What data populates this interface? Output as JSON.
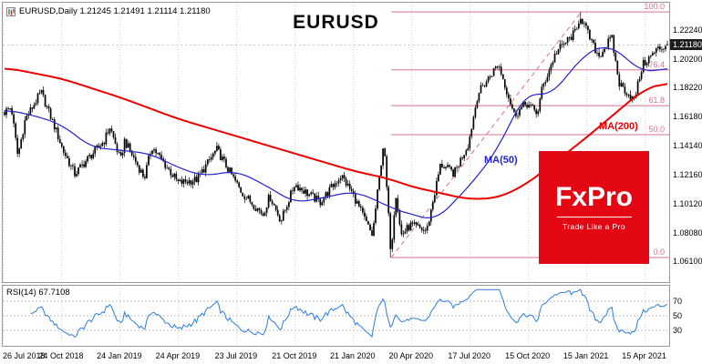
{
  "header": {
    "ohlc_line": "EURUSD,Daily  1.21245 1.21491 1.21114 1.21180"
  },
  "chart_title": "EURUSD",
  "overlays": {
    "ma200_label": "MA(200)",
    "ma50_label": "MA(50)"
  },
  "logo": {
    "brand": "FxPro",
    "tagline": "Trade Like a Pro"
  },
  "colors": {
    "candle": "#000000",
    "ma200": "#ee0000",
    "ma50": "#2323cc",
    "fib": "#db7093",
    "rsi_line": "#2f7ed8",
    "rsi_level": "#c0c0c0",
    "grid": "#d4d4d4",
    "bid_line": "#b8b8b8",
    "logo_bg": "#e30613",
    "price_tag_bg": "#1c1c1c"
  },
  "price_axis": {
    "labels": [
      "1.22240",
      "1.20200",
      "1.18220",
      "1.16180",
      "1.14140",
      "1.12160",
      "1.10120",
      "1.08080",
      "1.06100"
    ],
    "current": "1.21180"
  },
  "rsi_panel": {
    "label": "RSI(14) 67.7108",
    "axis_labels": [
      "70",
      "50",
      "30"
    ]
  },
  "date_axis": {
    "labels": [
      "26 Jul 2018",
      "24 Oct 2018",
      "24 Jan 2019",
      "24 Apr 2019",
      "23 Jul 2019",
      "21 Oct 2019",
      "21 Jan 2020",
      "20 Apr 2020",
      "17 Jul 2020",
      "15 Oct 2020",
      "15 Jan 2021",
      "15 Apr 2021"
    ]
  },
  "chart_data": {
    "type": "candlestick",
    "title": "EURUSD",
    "timeframe": "Daily",
    "bars": 360,
    "ohlc_current": {
      "open": 1.21245,
      "high": 1.21491,
      "low": 1.21114,
      "close": 1.2118
    },
    "current_price": 1.2118,
    "y_range": [
      1.0465,
      1.2413
    ],
    "x_tick_step": 0.0875,
    "close_path": [
      [
        0.0,
        1.165
      ],
      [
        0.01,
        1.1688
      ],
      [
        0.02,
        1.1342
      ],
      [
        0.031,
        1.1598
      ],
      [
        0.055,
        1.179
      ],
      [
        0.077,
        1.153
      ],
      [
        0.0875,
        1.1392
      ],
      [
        0.106,
        1.1218
      ],
      [
        0.125,
        1.1322
      ],
      [
        0.15,
        1.1448
      ],
      [
        0.159,
        1.1548
      ],
      [
        0.175,
        1.131
      ],
      [
        0.181,
        1.1452
      ],
      [
        0.211,
        1.1192
      ],
      [
        0.222,
        1.1412
      ],
      [
        0.2625,
        1.1155
      ],
      [
        0.29,
        1.118
      ],
      [
        0.32,
        1.139
      ],
      [
        0.35,
        1.1152
      ],
      [
        0.358,
        1.1088
      ],
      [
        0.39,
        1.0938
      ],
      [
        0.4,
        1.1068
      ],
      [
        0.417,
        1.0892
      ],
      [
        0.4375,
        1.1148
      ],
      [
        0.476,
        1.1022
      ],
      [
        0.508,
        1.121
      ],
      [
        0.525,
        1.1082
      ],
      [
        0.555,
        1.0788
      ],
      [
        0.572,
        1.1448
      ],
      [
        0.583,
        1.0662
      ],
      [
        0.59,
        1.1098
      ],
      [
        0.598,
        1.0792
      ],
      [
        0.6125,
        1.0862
      ],
      [
        0.637,
        1.0822
      ],
      [
        0.658,
        1.1288
      ],
      [
        0.678,
        1.1222
      ],
      [
        0.7,
        1.1432
      ],
      [
        0.714,
        1.1778
      ],
      [
        0.745,
        1.1988
      ],
      [
        0.769,
        1.1632
      ],
      [
        0.7875,
        1.1712
      ],
      [
        0.804,
        1.1642
      ],
      [
        0.811,
        1.1815
      ],
      [
        0.832,
        1.2068
      ],
      [
        0.863,
        1.2215
      ],
      [
        0.868,
        1.233
      ],
      [
        0.888,
        1.2112
      ],
      [
        0.897,
        1.2042
      ],
      [
        0.916,
        1.2172
      ],
      [
        0.927,
        1.1852
      ],
      [
        0.95,
        1.1732
      ],
      [
        0.9625,
        1.1978
      ],
      [
        0.985,
        1.2088
      ],
      [
        1.0,
        1.2118
      ]
    ],
    "ma50_path": [
      [
        0,
        1.167
      ],
      [
        0.05,
        1.162
      ],
      [
        0.0875,
        1.156
      ],
      [
        0.13,
        1.1405
      ],
      [
        0.175,
        1.1385
      ],
      [
        0.22,
        1.136
      ],
      [
        0.2625,
        1.1262
      ],
      [
        0.3,
        1.1205
      ],
      [
        0.35,
        1.124
      ],
      [
        0.39,
        1.115
      ],
      [
        0.4375,
        1.1018
      ],
      [
        0.48,
        1.1052
      ],
      [
        0.525,
        1.1098
      ],
      [
        0.56,
        1.104
      ],
      [
        0.583,
        1.098
      ],
      [
        0.6125,
        1.094
      ],
      [
        0.65,
        1.0892
      ],
      [
        0.7,
        1.1128
      ],
      [
        0.74,
        1.136
      ],
      [
        0.7875,
        1.1798
      ],
      [
        0.82,
        1.1752
      ],
      [
        0.86,
        1.1962
      ],
      [
        0.875,
        1.206
      ],
      [
        0.91,
        1.2122
      ],
      [
        0.935,
        1.2042
      ],
      [
        0.9625,
        1.1922
      ],
      [
        1.0,
        1.1962
      ]
    ],
    "ma200_path": [
      [
        0,
        1.1962
      ],
      [
        0.0875,
        1.1882
      ],
      [
        0.175,
        1.1752
      ],
      [
        0.2625,
        1.1602
      ],
      [
        0.35,
        1.1482
      ],
      [
        0.4375,
        1.1362
      ],
      [
        0.525,
        1.1242
      ],
      [
        0.583,
        1.1182
      ],
      [
        0.6125,
        1.1132
      ],
      [
        0.7,
        1.1042
      ],
      [
        0.745,
        1.1052
      ],
      [
        0.7875,
        1.1148
      ],
      [
        0.875,
        1.1462
      ],
      [
        0.9625,
        1.1802
      ],
      [
        1.0,
        1.1862
      ]
    ],
    "fibonacci": {
      "low": {
        "t": 0.583,
        "price": 1.0636
      },
      "high": {
        "t": 0.868,
        "price": 1.2349
      },
      "levels": [
        {
          "label": "0.0",
          "price": 1.0636
        },
        {
          "label": "50.0",
          "price": 1.1493
        },
        {
          "label": "61.8",
          "price": 1.1695
        },
        {
          "label": "76.4",
          "price": 1.1945
        },
        {
          "label": "100.0",
          "price": 1.2349
        }
      ]
    },
    "rsi": {
      "period": 14,
      "current": 67.7108,
      "levels": [
        70,
        50,
        30
      ],
      "display_range": [
        10,
        90
      ]
    }
  }
}
